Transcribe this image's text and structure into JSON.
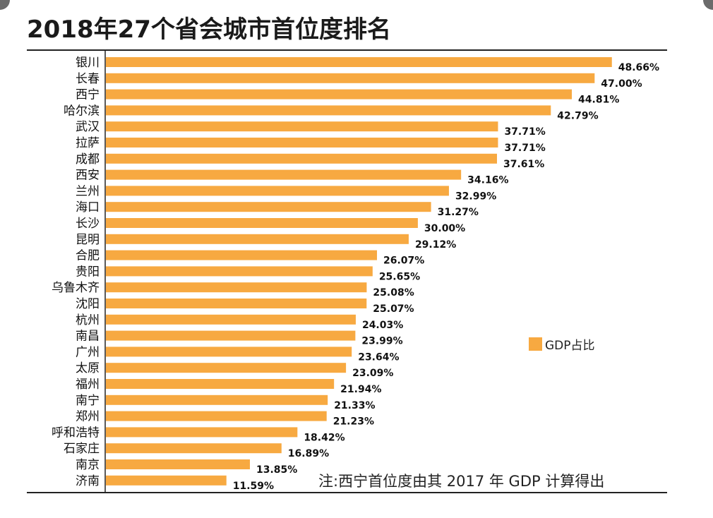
{
  "title": "2018年27个省会城市首位度排名",
  "legend": {
    "label": "GDP占比",
    "color": "#f7a941"
  },
  "note": "注:西宁首位度由其 2017 年 GDP 计算得出",
  "chart_data": {
    "type": "bar",
    "orientation": "horizontal",
    "title": "2018年27个省会城市首位度排名",
    "xlabel": "",
    "ylabel": "",
    "xlim": [
      0,
      50
    ],
    "grid": false,
    "legend_placement": "right",
    "bar_color": "#f7a941",
    "categories": [
      "银川",
      "长春",
      "西宁",
      "哈尔滨",
      "武汉",
      "拉萨",
      "成都",
      "西安",
      "兰州",
      "海口",
      "长沙",
      "昆明",
      "合肥",
      "贵阳",
      "乌鲁木齐",
      "沈阳",
      "杭州",
      "南昌",
      "广州",
      "太原",
      "福州",
      "南宁",
      "郑州",
      "呼和浩特",
      "石家庄",
      "南京",
      "济南"
    ],
    "series": [
      {
        "name": "GDP占比",
        "values": [
          48.66,
          47.0,
          44.81,
          42.79,
          37.71,
          37.71,
          37.61,
          34.16,
          32.99,
          31.27,
          30.0,
          29.12,
          26.07,
          25.65,
          25.08,
          25.07,
          24.03,
          23.99,
          23.64,
          23.09,
          21.94,
          21.33,
          21.23,
          18.42,
          16.89,
          13.85,
          11.59
        ],
        "labels": [
          "48.66%",
          "47.00%",
          "44.81%",
          "42.79%",
          "37.71%",
          "37.71%",
          "37.61%",
          "34.16%",
          "32.99%",
          "31.27%",
          "30.00%",
          "29.12%",
          "26.07%",
          "25.65%",
          "25.08%",
          "25.07%",
          "24.03%",
          "23.99%",
          "23.64%",
          "23.09%",
          "21.94%",
          "21.33%",
          "21.23%",
          "18.42%",
          "16.89%",
          "13.85%",
          "11.59%"
        ]
      }
    ]
  }
}
